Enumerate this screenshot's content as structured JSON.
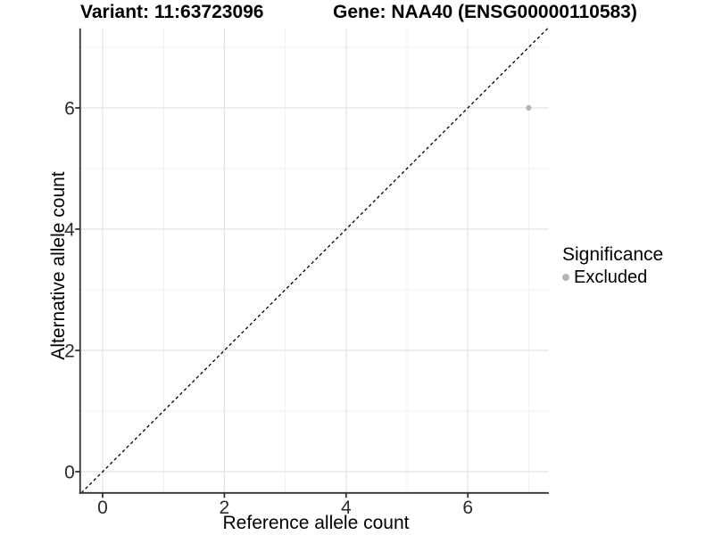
{
  "titles": {
    "left": "Variant: 11:63723096",
    "right": "Gene: NAA40 (ENSG00000110583)"
  },
  "chart_data": {
    "type": "scatter",
    "xlabel": "Reference allele count",
    "ylabel": "Alternative allele count",
    "xlim": [
      -0.37,
      7.33
    ],
    "ylim": [
      -0.35,
      7.31
    ],
    "x_major_ticks": [
      0,
      2,
      4,
      6
    ],
    "x_minor_ticks": [
      1,
      3,
      5,
      7
    ],
    "y_major_ticks": [
      0,
      2,
      4,
      6
    ],
    "y_minor_ticks": [
      1,
      3,
      5,
      7
    ],
    "points": [
      {
        "x": 7,
        "y": 6,
        "series": "Excluded"
      }
    ],
    "reference_line": {
      "slope": 1,
      "intercept": 0,
      "style": "dashed"
    },
    "legend": {
      "title": "Significance",
      "position": "right",
      "items": [
        {
          "label": "Excluded",
          "color": "#b5b5b5"
        }
      ]
    },
    "grid": true
  },
  "colors": {
    "point": "#b5b5b5",
    "grid_major": "#e4e4e4",
    "grid_minor": "#f1f1f1",
    "axis_line": "#333333",
    "tick_label": "#2b2b2b",
    "reference_line": "#000000"
  }
}
